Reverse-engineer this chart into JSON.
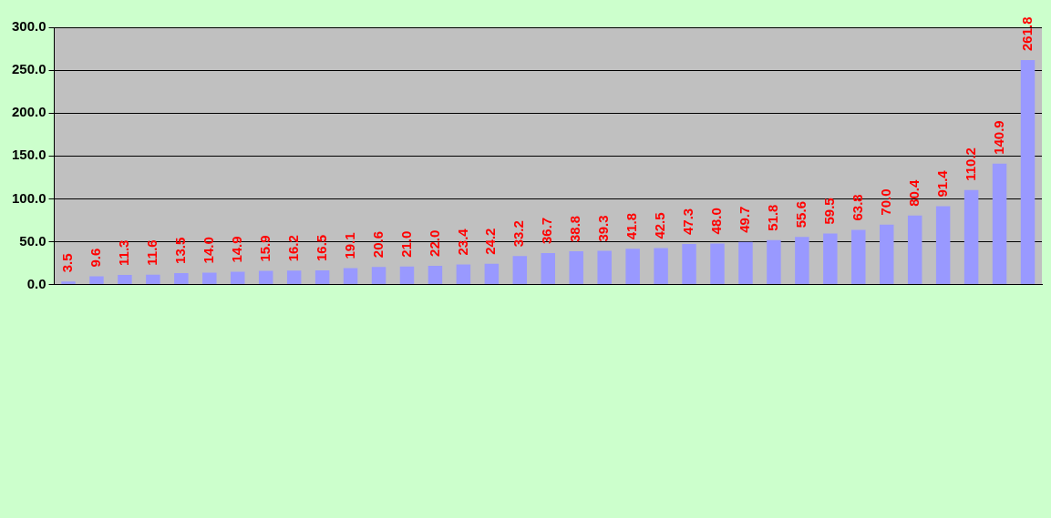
{
  "chart_data": {
    "type": "bar",
    "categories": [
      null,
      null,
      null,
      null,
      null,
      null,
      null,
      null,
      null,
      null,
      null,
      null,
      null,
      null,
      null,
      null,
      null,
      null,
      null,
      null,
      null,
      null,
      null,
      null,
      null,
      null,
      null,
      null,
      null,
      null,
      null,
      null,
      null,
      null,
      null
    ],
    "values": [
      3.5,
      9.6,
      11.3,
      11.6,
      13.5,
      14.0,
      14.9,
      15.9,
      16.2,
      16.5,
      19.1,
      20.6,
      21.0,
      22.0,
      23.4,
      24.2,
      33.2,
      36.7,
      38.8,
      39.3,
      41.8,
      42.5,
      47.3,
      48.0,
      49.7,
      51.8,
      55.6,
      59.5,
      63.8,
      70.0,
      80.4,
      91.4,
      110.2,
      140.9,
      261.8
    ],
    "value_labels": [
      "3.5",
      "9.6",
      "11.3",
      "11.6",
      "13.5",
      "14.0",
      "14.9",
      "15.9",
      "16.2",
      "16.5",
      "19.1",
      "20.6",
      "21.0",
      "22.0",
      "23.4",
      "24.2",
      "33.2",
      "36.7",
      "38.8",
      "39.3",
      "41.8",
      "42.5",
      "47.3",
      "48.0",
      "49.7",
      "51.8",
      "55.6",
      "59.5",
      "63.8",
      "70.0",
      "80.4",
      "91.4",
      "110.2",
      "140.9",
      "261.8"
    ],
    "color": "#9999ff",
    "ylim": [
      0,
      300
    ],
    "yticks": [
      {
        "value": 0,
        "label": "0.0"
      },
      {
        "value": 50,
        "label": "50.0"
      },
      {
        "value": 100,
        "label": "100.0"
      },
      {
        "value": 150,
        "label": "150.0"
      },
      {
        "value": 200,
        "label": "200.0"
      },
      {
        "value": 250,
        "label": "250.0"
      },
      {
        "value": 300,
        "label": "300.0"
      }
    ],
    "grid": "y",
    "legend": false
  }
}
